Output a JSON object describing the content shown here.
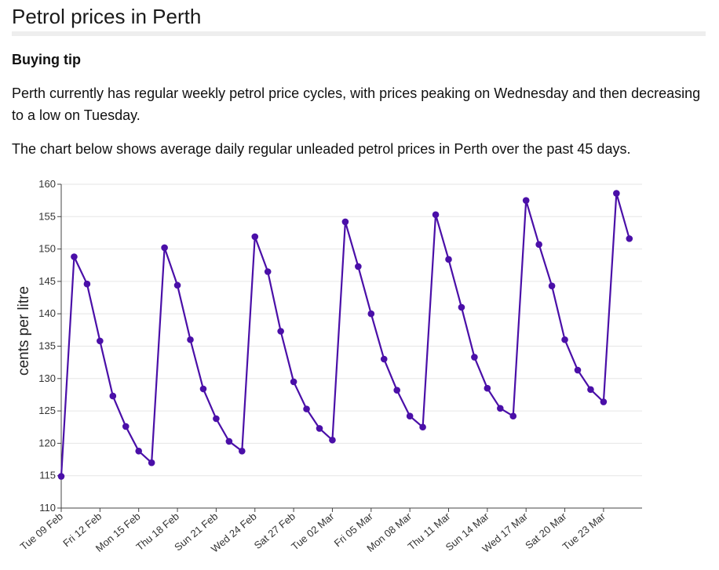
{
  "page": {
    "title": "Petrol prices in Perth",
    "tip_heading": "Buying tip",
    "paragraph1": "Perth currently has regular weekly petrol price cycles, with prices peaking on Wednesday and then decreasing to a low on Tuesday.",
    "paragraph2": "The chart below shows average daily regular unleaded petrol prices in Perth over the past 45 days."
  },
  "chart_data": {
    "type": "line",
    "title": "",
    "xlabel": "",
    "ylabel": "cents per litre",
    "ylim": [
      110,
      160
    ],
    "yticks": [
      110,
      115,
      120,
      125,
      130,
      135,
      140,
      145,
      150,
      155,
      160
    ],
    "grid": true,
    "line_color": "#4a0fa8",
    "x_tick_labels": [
      "Tue 09 Feb",
      "Fri 12 Feb",
      "Mon 15 Feb",
      "Thu 18 Feb",
      "Sun 21 Feb",
      "Wed 24 Feb",
      "Sat 27 Feb",
      "Tue 02 Mar",
      "Fri 05 Mar",
      "Mon 08 Mar",
      "Thu 11 Mar",
      "Sun 14 Mar",
      "Wed 17 Mar",
      "Sat 20 Mar",
      "Tue 23 Mar"
    ],
    "x": [
      "Tue 09 Feb",
      "Wed 10 Feb",
      "Thu 11 Feb",
      "Fri 12 Feb",
      "Sat 13 Feb",
      "Sun 14 Feb",
      "Mon 15 Feb",
      "Tue 16 Feb",
      "Wed 17 Feb",
      "Thu 18 Feb",
      "Fri 19 Feb",
      "Sat 20 Feb",
      "Sun 21 Feb",
      "Mon 22 Feb",
      "Tue 23 Feb",
      "Wed 24 Feb",
      "Thu 25 Feb",
      "Fri 26 Feb",
      "Sat 27 Feb",
      "Sun 28 Feb",
      "Mon 01 Mar",
      "Tue 02 Mar",
      "Wed 03 Mar",
      "Thu 04 Mar",
      "Fri 05 Mar",
      "Sat 06 Mar",
      "Sun 07 Mar",
      "Mon 08 Mar",
      "Tue 09 Mar",
      "Wed 10 Mar",
      "Thu 11 Mar",
      "Fri 12 Mar",
      "Sat 13 Mar",
      "Sun 14 Mar",
      "Mon 15 Mar",
      "Tue 16 Mar",
      "Wed 17 Mar",
      "Thu 18 Mar",
      "Fri 19 Mar",
      "Sat 20 Mar",
      "Sun 21 Mar",
      "Mon 22 Mar",
      "Tue 23 Mar",
      "Wed 24 Mar",
      "Thu 25 Mar"
    ],
    "series": [
      {
        "values": [
          114.9,
          148.8,
          144.6,
          135.8,
          127.3,
          122.6,
          118.8,
          117.0,
          150.2,
          144.4,
          136.0,
          128.4,
          123.8,
          120.3,
          118.8,
          151.9,
          146.5,
          137.3,
          129.5,
          125.3,
          122.3,
          120.5,
          154.2,
          147.3,
          140.0,
          133.0,
          128.2,
          124.2,
          122.5,
          155.3,
          148.4,
          141.0,
          133.3,
          128.5,
          125.4,
          124.2,
          157.5,
          150.7,
          144.3,
          136.0,
          131.3,
          128.3,
          126.4,
          158.6,
          151.6
        ]
      }
    ]
  }
}
